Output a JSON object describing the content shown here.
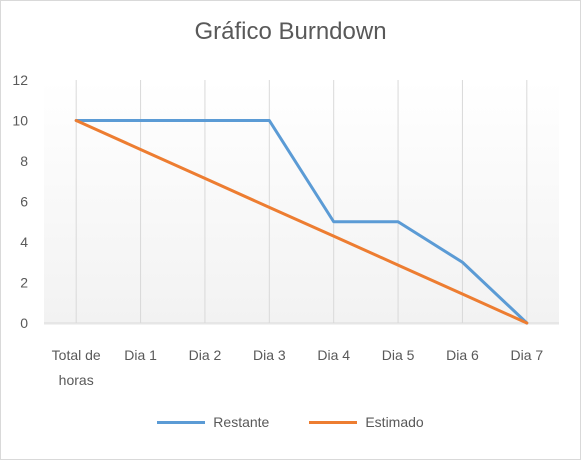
{
  "chart_data": {
    "type": "line",
    "title": "Gráfico Burndown",
    "categories": [
      [
        "Total de",
        "horas"
      ],
      [
        "Dia 1"
      ],
      [
        "Dia 2"
      ],
      [
        "Dia 3"
      ],
      [
        "Dia 4"
      ],
      [
        "Dia 5"
      ],
      [
        "Dia 6"
      ],
      [
        "Dia 7"
      ]
    ],
    "series": [
      {
        "name": "Restante",
        "color": "#5b9bd5",
        "values": [
          10,
          10,
          10,
          10,
          5,
          5,
          3,
          0
        ]
      },
      {
        "name": "Estimado",
        "color": "#ed7d31",
        "values": [
          10,
          8.57,
          7.14,
          5.71,
          4.29,
          2.86,
          1.43,
          0
        ]
      }
    ],
    "ylim": [
      0,
      12
    ],
    "yticks": [
      0,
      2,
      4,
      6,
      8,
      10,
      12
    ],
    "grid": "vertical",
    "legend": "bottom"
  }
}
